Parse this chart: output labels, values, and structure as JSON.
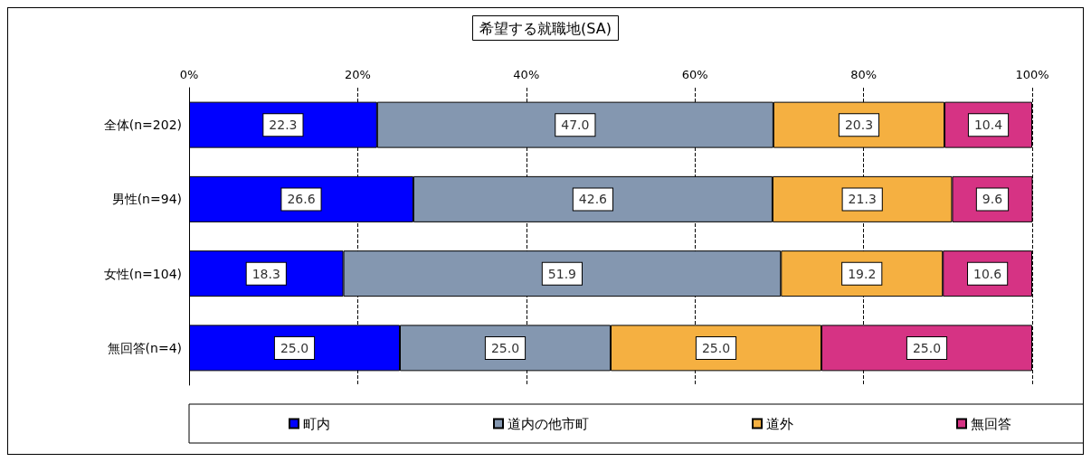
{
  "chart_data": {
    "type": "bar",
    "orientation": "horizontal",
    "stacked": true,
    "title": "希望する就職地(SA)",
    "categories": [
      "全体(n=202)",
      "男性(n=94)",
      "女性(n=104)",
      "無回答(n=4)"
    ],
    "series": [
      {
        "name": "町内",
        "color": "#0000ff",
        "values": [
          22.3,
          26.6,
          18.3,
          25.0
        ],
        "value_labels": [
          "22.3",
          "26.6",
          "18.3",
          "25.0"
        ]
      },
      {
        "name": "道内の他市町",
        "color": "#8497b0",
        "values": [
          47.0,
          42.6,
          51.9,
          25.0
        ],
        "value_labels": [
          "47.0",
          "42.6",
          "51.9",
          "25.0"
        ]
      },
      {
        "name": "道外",
        "color": "#f5b041",
        "values": [
          20.3,
          21.3,
          19.2,
          25.0
        ],
        "value_labels": [
          "20.3",
          "21.3",
          "19.2",
          "25.0"
        ]
      },
      {
        "name": "無回答",
        "color": "#d63384",
        "values": [
          10.4,
          9.6,
          10.6,
          25.0
        ],
        "value_labels": [
          "10.4",
          "9.6",
          "10.6",
          "25.0"
        ]
      }
    ],
    "xlim": [
      0,
      100
    ],
    "xticks": [
      {
        "value": 0,
        "label": "0%"
      },
      {
        "value": 20,
        "label": "20%"
      },
      {
        "value": 40,
        "label": "40%"
      },
      {
        "value": 60,
        "label": "60%"
      },
      {
        "value": 80,
        "label": "80%"
      },
      {
        "value": 100,
        "label": "100%"
      }
    ],
    "grid": "x",
    "legend": "bottom"
  }
}
